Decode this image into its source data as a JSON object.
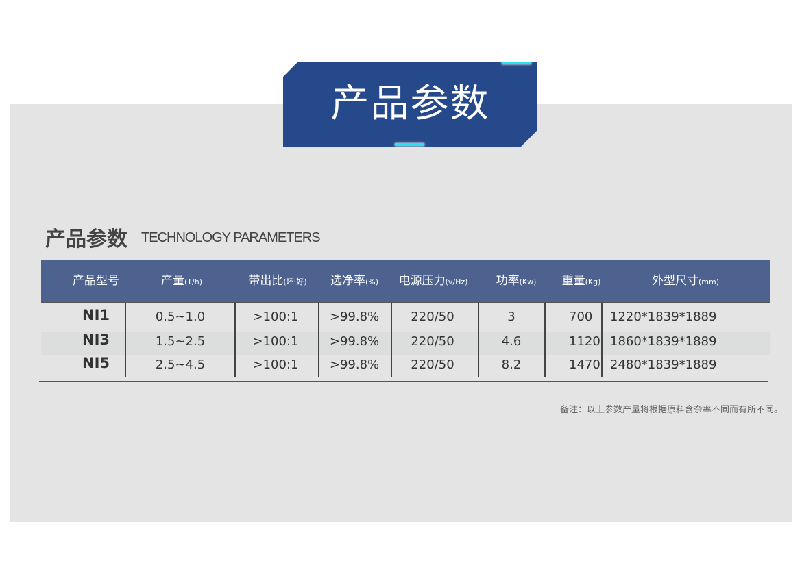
{
  "banner": {
    "title": "产品参数",
    "accent": "#25498a"
  },
  "section": {
    "title": "产品参数",
    "subtitle": "TECHNOLOGY PARAMETERS"
  },
  "table": {
    "headers": [
      {
        "label": "产品型号",
        "unit": ""
      },
      {
        "label": "产量",
        "unit": "(T/h)"
      },
      {
        "label": "带出比",
        "unit": "(坏:好)"
      },
      {
        "label": "选净率",
        "unit": "(%)"
      },
      {
        "label": "电源压力",
        "unit": "(v/Hz)"
      },
      {
        "label": "功率",
        "unit": "(Kw)"
      },
      {
        "label": "重量",
        "unit": "(Kg)"
      },
      {
        "label": "外型尺寸",
        "unit": "(mm)"
      }
    ],
    "rows": [
      [
        "NI1",
        "0.5~1.0",
        ">100:1",
        ">99.8%",
        "220/50",
        "3",
        "700",
        "1220*1839*1889"
      ],
      [
        "NI3",
        "1.5~2.5",
        ">100:1",
        ">99.8%",
        "220/50",
        "4.6",
        "1120",
        "1860*1839*1889"
      ],
      [
        "NI5",
        "2.5~4.5",
        ">100:1",
        ">99.8%",
        "220/50",
        "8.2",
        "1470",
        "2480*1839*1889"
      ]
    ]
  },
  "note": "备注：以上参数产量将根据原料含杂率不同而有所不同。"
}
